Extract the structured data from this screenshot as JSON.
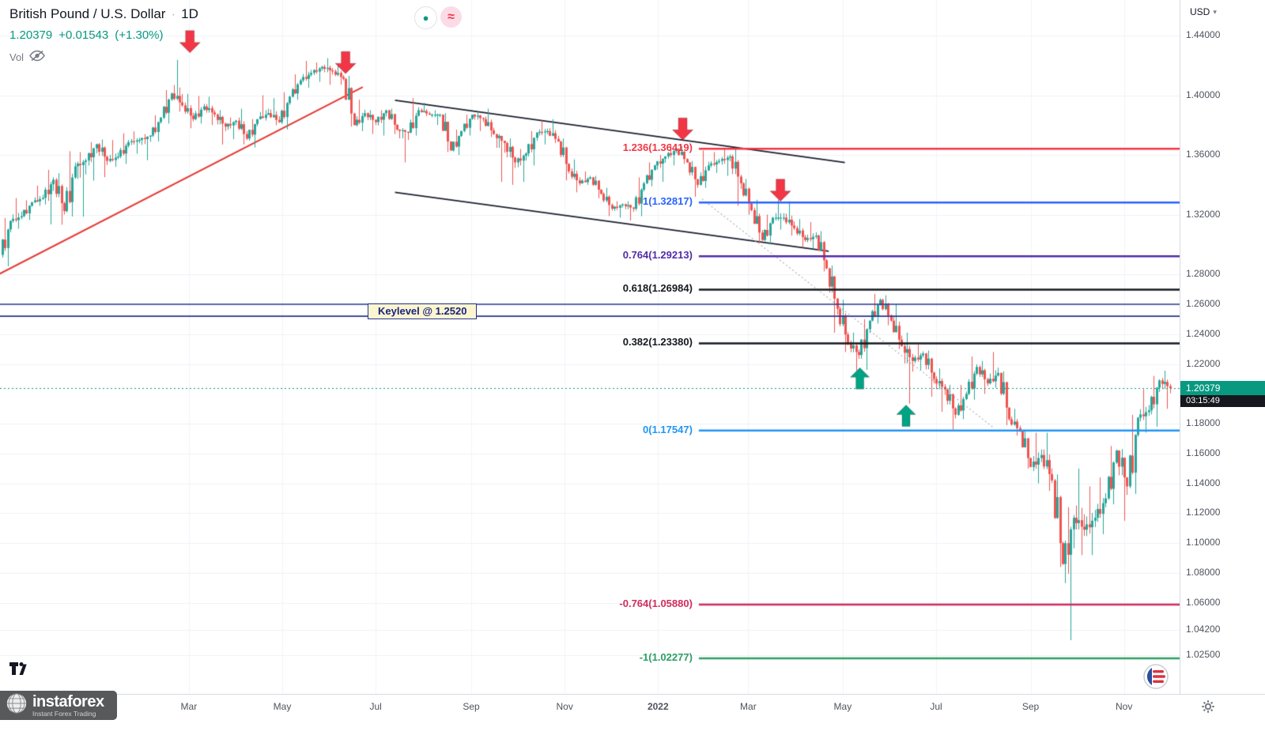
{
  "header": {
    "title": "British Pound / U.S. Dollar",
    "separator": "·",
    "interval": "1D",
    "last_price": "1.20379",
    "change": "+0.01543",
    "change_percent": "(+1.30%)",
    "volume_label": "Vol"
  },
  "toolbar_chips": {
    "dot_chip": "●",
    "wave_chip": "≈"
  },
  "price_axis": {
    "currency": "USD",
    "dropdown_arrow": "▾",
    "labels": [
      "1.44000",
      "1.40000",
      "1.36000",
      "1.32000",
      "1.28000",
      "1.26000",
      "1.24000",
      "1.22000",
      "1.18000",
      "1.16000",
      "1.14000",
      "1.12000",
      "1.10000",
      "1.08000",
      "1.06000",
      "1.04200",
      "1.02500"
    ],
    "current_price_label": "1.20379",
    "countdown": "03:15:49",
    "badge_color": "#089981",
    "countdown_bg": "#15181e"
  },
  "time_axis": {
    "ticks": [
      {
        "label": "Mar",
        "week": 17.0
      },
      {
        "label": "May",
        "week": 25.7
      },
      {
        "label": "Jul",
        "week": 34.4
      },
      {
        "label": "Sep",
        "week": 43.3
      },
      {
        "label": "Nov",
        "week": 52.0
      },
      {
        "label": "2022",
        "week": 60.7
      },
      {
        "label": "Mar",
        "week": 69.1
      },
      {
        "label": "May",
        "week": 77.9
      },
      {
        "label": "Jul",
        "week": 86.6
      },
      {
        "label": "Sep",
        "week": 95.4
      },
      {
        "label": "Nov",
        "week": 104.1
      }
    ]
  },
  "key_level": {
    "label": "Keylevel @ 1.2520",
    "upper_price": 1.26,
    "lower_price": 1.252,
    "color": "#283593"
  },
  "branding": {
    "instaforex_name": "instaforex",
    "instaforex_tagline": "Instant Forex Trading"
  },
  "chart_data": {
    "type": "candlestick",
    "title": "British Pound / U.S. Dollar, 1D",
    "last_price": 1.20379,
    "price_range_visible": [
      1.0,
      1.464
    ],
    "time_range_visible": [
      "Nov 2020",
      "Dec 2022"
    ],
    "up_color": "#26a69a",
    "down_color": "#ef5350",
    "current_price_line_color": "#089981",
    "fib_level_start_week": 64.5,
    "fib_levels": [
      {
        "label": "1.236(1.36419)",
        "price": 1.36419,
        "color": "#f23645"
      },
      {
        "label": "1(1.32817)",
        "price": 1.32817,
        "color": "#2962ff"
      },
      {
        "label": "0.764(1.29213)",
        "price": 1.29213,
        "color": "#512da8"
      },
      {
        "label": "0.618(1.26984)",
        "price": 1.26984,
        "color": "#15181e"
      },
      {
        "label": "0.382(1.23380)",
        "price": 1.2338,
        "color": "#15181e"
      },
      {
        "label": "0(1.17547)",
        "price": 1.17547,
        "color": "#2196f3"
      },
      {
        "label": "-0.764(1.05880)",
        "price": 1.0588,
        "color": "#cf2d5e"
      },
      {
        "label": "-1(1.02277)",
        "price": 1.02277,
        "color": "#2e9e63"
      }
    ],
    "trendlines": [
      {
        "name": "ascending-support",
        "color": "#e53935",
        "width": 2,
        "dash": [],
        "w1": -0.6,
        "p1": 1.2805,
        "w2": 33.2,
        "p2": 1.4055
      },
      {
        "name": "channel-upper",
        "color": "#1c2030",
        "width": 1.8,
        "dash": [],
        "w1": 36.2,
        "p1": 1.3966,
        "w2": 78.1,
        "p2": 1.355
      },
      {
        "name": "channel-lower",
        "color": "#1c2030",
        "width": 1.8,
        "dash": [],
        "w1": 36.2,
        "p1": 1.335,
        "w2": 76.6,
        "p2": 1.2955
      },
      {
        "name": "projection",
        "color": "#b0b3ba",
        "width": 1.2,
        "dash": [
          2,
          3
        ],
        "w1": 64.8,
        "p1": 1.3305,
        "w2": 92.0,
        "p2": 1.177
      }
    ],
    "arrows": [
      {
        "dir": "down",
        "week": 17.1,
        "price": 1.4285,
        "color": "#f23645"
      },
      {
        "dir": "down",
        "week": 31.6,
        "price": 1.4145,
        "color": "#f23645"
      },
      {
        "dir": "down",
        "week": 63.0,
        "price": 1.37,
        "color": "#f23645"
      },
      {
        "dir": "down",
        "week": 72.1,
        "price": 1.329,
        "color": "#f23645"
      },
      {
        "dir": "up",
        "week": 79.5,
        "price": 1.2175,
        "color": "#00a383"
      },
      {
        "dir": "up",
        "week": 83.8,
        "price": 1.1925,
        "color": "#00a383"
      }
    ],
    "candles_weekly_ohlc": [
      [
        1.2931,
        1.3177,
        1.2854,
        1.3158
      ],
      [
        1.3158,
        1.3311,
        1.3106,
        1.319
      ],
      [
        1.319,
        1.3297,
        1.3165,
        1.3283
      ],
      [
        1.3283,
        1.3394,
        1.3259,
        1.3313
      ],
      [
        1.3313,
        1.35,
        1.3135,
        1.3434
      ],
      [
        1.3434,
        1.3478,
        1.3133,
        1.3224
      ],
      [
        1.3224,
        1.3625,
        1.3188,
        1.3524
      ],
      [
        1.3524,
        1.3619,
        1.3187,
        1.3563
      ],
      [
        1.3563,
        1.3686,
        1.3428,
        1.3672
      ],
      [
        1.3672,
        1.3703,
        1.3451,
        1.356
      ],
      [
        1.356,
        1.37,
        1.352,
        1.359
      ],
      [
        1.359,
        1.3745,
        1.354,
        1.3686
      ],
      [
        1.3686,
        1.3758,
        1.3608,
        1.3701
      ],
      [
        1.3701,
        1.374,
        1.3565,
        1.373
      ],
      [
        1.373,
        1.3866,
        1.369,
        1.385
      ],
      [
        1.385,
        1.4035,
        1.381,
        1.4012
      ],
      [
        1.4012,
        1.4237,
        1.389,
        1.3932
      ],
      [
        1.3932,
        1.401,
        1.3779,
        1.384
      ],
      [
        1.384,
        1.3995,
        1.381,
        1.3925
      ],
      [
        1.3925,
        1.399,
        1.38,
        1.3871
      ],
      [
        1.3871,
        1.39,
        1.367,
        1.379
      ],
      [
        1.379,
        1.385,
        1.3705,
        1.383
      ],
      [
        1.383,
        1.391,
        1.367,
        1.371
      ],
      [
        1.371,
        1.384,
        1.365,
        1.384
      ],
      [
        1.384,
        1.4,
        1.383,
        1.388
      ],
      [
        1.388,
        1.398,
        1.38,
        1.382
      ],
      [
        1.382,
        1.402,
        1.377,
        1.399
      ],
      [
        1.399,
        1.414,
        1.397,
        1.41
      ],
      [
        1.41,
        1.423,
        1.405,
        1.415
      ],
      [
        1.415,
        1.422,
        1.409,
        1.419
      ],
      [
        1.419,
        1.4248,
        1.407,
        1.416
      ],
      [
        1.416,
        1.421,
        1.407,
        1.411
      ],
      [
        1.411,
        1.413,
        1.379,
        1.38
      ],
      [
        1.38,
        1.397,
        1.376,
        1.388
      ],
      [
        1.388,
        1.39,
        1.374,
        1.382
      ],
      [
        1.382,
        1.39,
        1.373,
        1.39
      ],
      [
        1.39,
        1.391,
        1.374,
        1.377
      ],
      [
        1.377,
        1.378,
        1.355,
        1.375
      ],
      [
        1.375,
        1.398,
        1.373,
        1.39
      ],
      [
        1.39,
        1.395,
        1.386,
        1.387
      ],
      [
        1.387,
        1.39,
        1.38,
        1.387
      ],
      [
        1.387,
        1.388,
        1.362,
        1.363
      ],
      [
        1.363,
        1.377,
        1.36,
        1.376
      ],
      [
        1.376,
        1.387,
        1.373,
        1.387
      ],
      [
        1.387,
        1.389,
        1.376,
        1.384
      ],
      [
        1.384,
        1.391,
        1.372,
        1.374
      ],
      [
        1.374,
        1.374,
        1.342,
        1.368
      ],
      [
        1.368,
        1.371,
        1.34,
        1.355
      ],
      [
        1.355,
        1.364,
        1.342,
        1.361
      ],
      [
        1.361,
        1.376,
        1.353,
        1.375
      ],
      [
        1.375,
        1.383,
        1.367,
        1.376
      ],
      [
        1.376,
        1.384,
        1.368,
        1.369
      ],
      [
        1.369,
        1.371,
        1.343,
        1.349
      ],
      [
        1.349,
        1.357,
        1.335,
        1.341
      ],
      [
        1.341,
        1.349,
        1.34,
        1.345
      ],
      [
        1.345,
        1.346,
        1.331,
        1.334
      ],
      [
        1.334,
        1.338,
        1.319,
        1.324
      ],
      [
        1.324,
        1.329,
        1.318,
        1.327
      ],
      [
        1.327,
        1.329,
        1.316,
        1.324
      ],
      [
        1.324,
        1.345,
        1.319,
        1.341
      ],
      [
        1.341,
        1.355,
        1.339,
        1.353
      ],
      [
        1.353,
        1.36,
        1.342,
        1.359
      ],
      [
        1.359,
        1.3672,
        1.353,
        1.364
      ],
      [
        1.364,
        1.366,
        1.354,
        1.355
      ],
      [
        1.355,
        1.356,
        1.332,
        1.34
      ],
      [
        1.34,
        1.363,
        1.338,
        1.353
      ],
      [
        1.353,
        1.362,
        1.348,
        1.356
      ],
      [
        1.356,
        1.3643,
        1.346,
        1.359
      ],
      [
        1.359,
        1.364,
        1.326,
        1.341
      ],
      [
        1.341,
        1.344,
        1.32,
        1.323
      ],
      [
        1.323,
        1.33,
        1.301,
        1.303
      ],
      [
        1.303,
        1.32,
        1.3,
        1.318
      ],
      [
        1.318,
        1.33,
        1.31,
        1.318
      ],
      [
        1.318,
        1.329,
        1.306,
        1.311
      ],
      [
        1.311,
        1.317,
        1.298,
        1.303
      ],
      [
        1.303,
        1.315,
        1.297,
        1.306
      ],
      [
        1.306,
        1.309,
        1.282,
        1.284
      ],
      [
        1.284,
        1.286,
        1.241,
        1.257
      ],
      [
        1.257,
        1.263,
        1.228,
        1.234
      ],
      [
        1.234,
        1.241,
        1.2156,
        1.226
      ],
      [
        1.226,
        1.25,
        1.216,
        1.249
      ],
      [
        1.249,
        1.267,
        1.247,
        1.263
      ],
      [
        1.263,
        1.266,
        1.246,
        1.249
      ],
      [
        1.249,
        1.26,
        1.23,
        1.232
      ],
      [
        1.232,
        1.241,
        1.1934,
        1.222
      ],
      [
        1.222,
        1.233,
        1.216,
        1.227
      ],
      [
        1.227,
        1.229,
        1.198,
        1.21
      ],
      [
        1.21,
        1.217,
        1.188,
        1.203
      ],
      [
        1.203,
        1.206,
        1.176,
        1.186
      ],
      [
        1.186,
        1.206,
        1.183,
        1.2
      ],
      [
        1.2,
        1.225,
        1.196,
        1.218
      ],
      [
        1.218,
        1.222,
        1.2,
        1.207
      ],
      [
        1.207,
        1.228,
        1.204,
        1.214
      ],
      [
        1.214,
        1.215,
        1.179,
        1.183
      ],
      [
        1.183,
        1.19,
        1.172,
        1.175
      ],
      [
        1.175,
        1.176,
        1.15,
        1.151
      ],
      [
        1.151,
        1.174,
        1.14,
        1.159
      ],
      [
        1.159,
        1.174,
        1.135,
        1.142
      ],
      [
        1.142,
        1.146,
        1.084,
        1.086
      ],
      [
        1.086,
        1.124,
        1.035,
        1.117
      ],
      [
        1.117,
        1.15,
        1.092,
        1.109
      ],
      [
        1.109,
        1.138,
        1.092,
        1.117
      ],
      [
        1.117,
        1.144,
        1.106,
        1.13
      ],
      [
        1.13,
        1.165,
        1.126,
        1.162
      ],
      [
        1.162,
        1.163,
        1.115,
        1.138
      ],
      [
        1.138,
        1.186,
        1.133,
        1.184
      ],
      [
        1.184,
        1.203,
        1.174,
        1.189
      ],
      [
        1.189,
        1.212,
        1.178,
        1.209
      ],
      [
        1.209,
        1.2155,
        1.19,
        1.2038
      ]
    ]
  }
}
